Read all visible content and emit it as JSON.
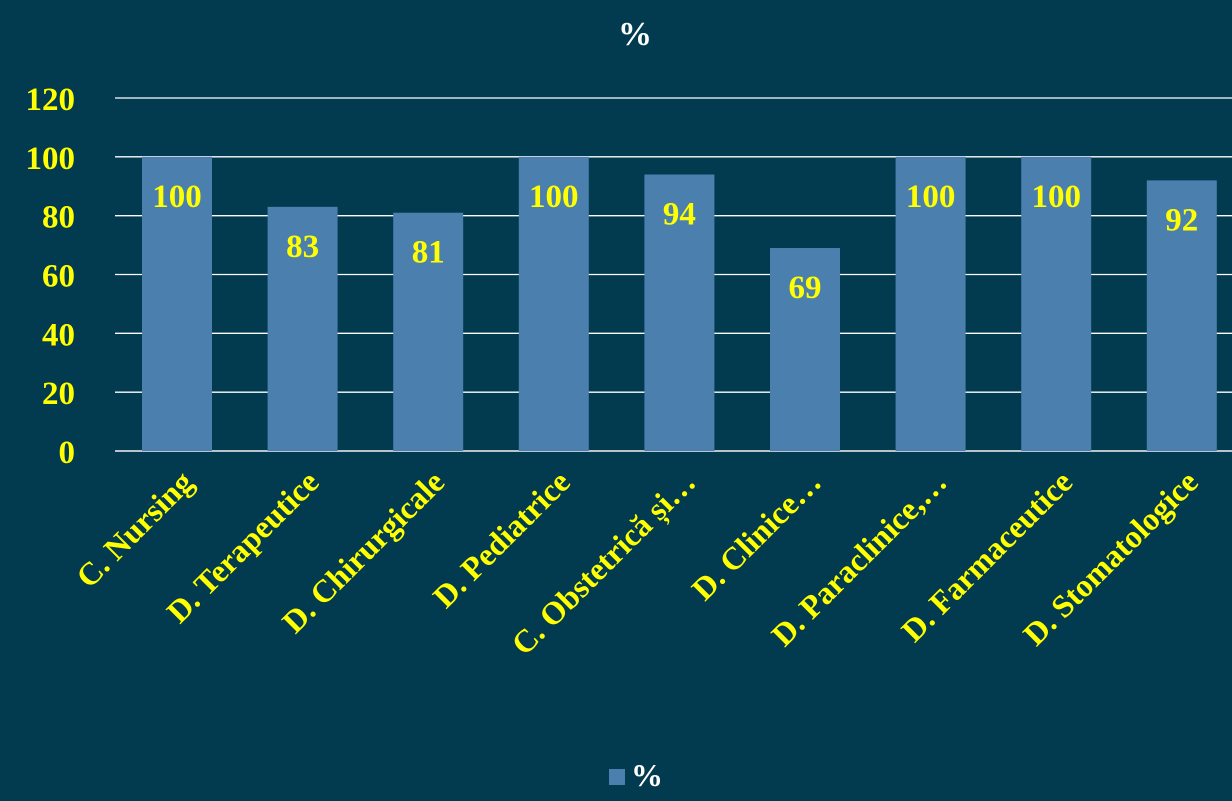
{
  "chart_data": {
    "type": "bar",
    "title": "%",
    "categories": [
      "C. Nursing",
      "D. Terapeutice",
      "D. Chirurgicale",
      "D. Pediatrice",
      "C. Obstetrică și…",
      "D. Clinice…",
      "D. Paraclinice,…",
      "D. Farmaceutice",
      "D. Stomatologice"
    ],
    "series": [
      {
        "name": "%",
        "values": [
          100,
          83,
          81,
          100,
          94,
          69,
          100,
          100,
          92
        ]
      }
    ],
    "ylim": [
      0,
      120
    ],
    "yticks": [
      0,
      20,
      40,
      60,
      80,
      100,
      120
    ],
    "ytick_labels": [
      "0",
      "20",
      "40",
      "60",
      "80",
      "100",
      "120"
    ],
    "grid": true,
    "legend_position": "bottom",
    "data_labels": true
  },
  "colors": {
    "background": "#023a4f",
    "bar": "#4a7fae",
    "gridline": "#ffffff",
    "axis_text": "#ffff00",
    "title_text": "#ffffff"
  }
}
